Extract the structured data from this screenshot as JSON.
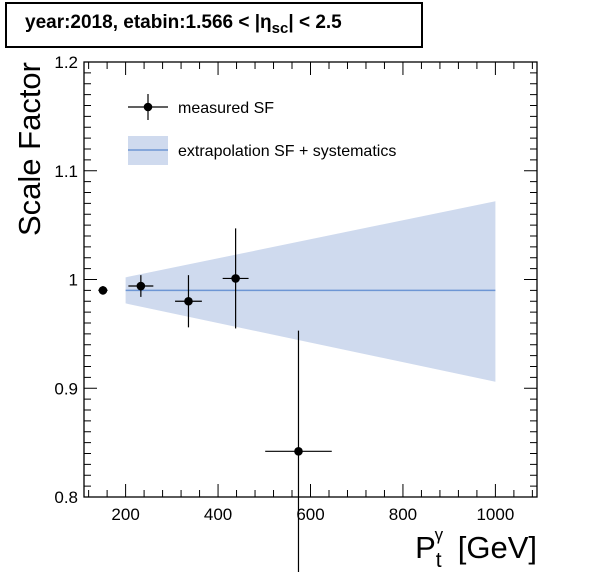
{
  "header": {
    "prefix": "year:2018, etabin:1.566 < |η",
    "sub": "sc",
    "suffix": "| < 2.5"
  },
  "chart_data": {
    "type": "scatter",
    "title": "year:2018, etabin:1.566 < |η_sc| < 2.5",
    "xlabel": "P_t^γ [GeV]",
    "ylabel": "Scale Factor",
    "xlim": [
      110,
      1090
    ],
    "ylim": [
      0.8,
      1.2
    ],
    "x_ticks": [
      200,
      400,
      600,
      800,
      1000
    ],
    "y_ticks": [
      0.8,
      0.9,
      1.0,
      1.1,
      1.2
    ],
    "x_tick_labels": [
      "200",
      "400",
      "600",
      "800",
      "1000"
    ],
    "y_tick_labels": [
      "0.8",
      "0.9",
      "1",
      "1.1",
      "1.2"
    ],
    "legend": {
      "placement": "top-left",
      "entries": [
        "measured SF",
        "extrapolation SF + systematics"
      ]
    },
    "series": [
      {
        "name": "measured SF",
        "points": [
          {
            "x": 151,
            "y": 0.99,
            "xerr": 10,
            "yerr": 0.004
          },
          {
            "x": 233,
            "y": 0.994,
            "xerr": 27,
            "yerr": 0.01
          },
          {
            "x": 336,
            "y": 0.98,
            "xerr": 29,
            "yerr": 0.024
          },
          {
            "x": 438,
            "y": 1.001,
            "xerr": 28,
            "yerr": 0.046
          },
          {
            "x": 574,
            "y": 0.842,
            "xerr": 72,
            "yerr": 0.111
          }
        ]
      },
      {
        "name": "extrapolation SF + systematics",
        "line_y": 0.99,
        "band": [
          {
            "x": 200,
            "low": 0.978,
            "high": 1.002
          },
          {
            "x": 1000,
            "low": 0.906,
            "high": 1.072
          }
        ]
      }
    ],
    "colors": {
      "band_fill": "#cfdaee",
      "central_line": "#6e96d4",
      "markers": "#000000"
    }
  }
}
